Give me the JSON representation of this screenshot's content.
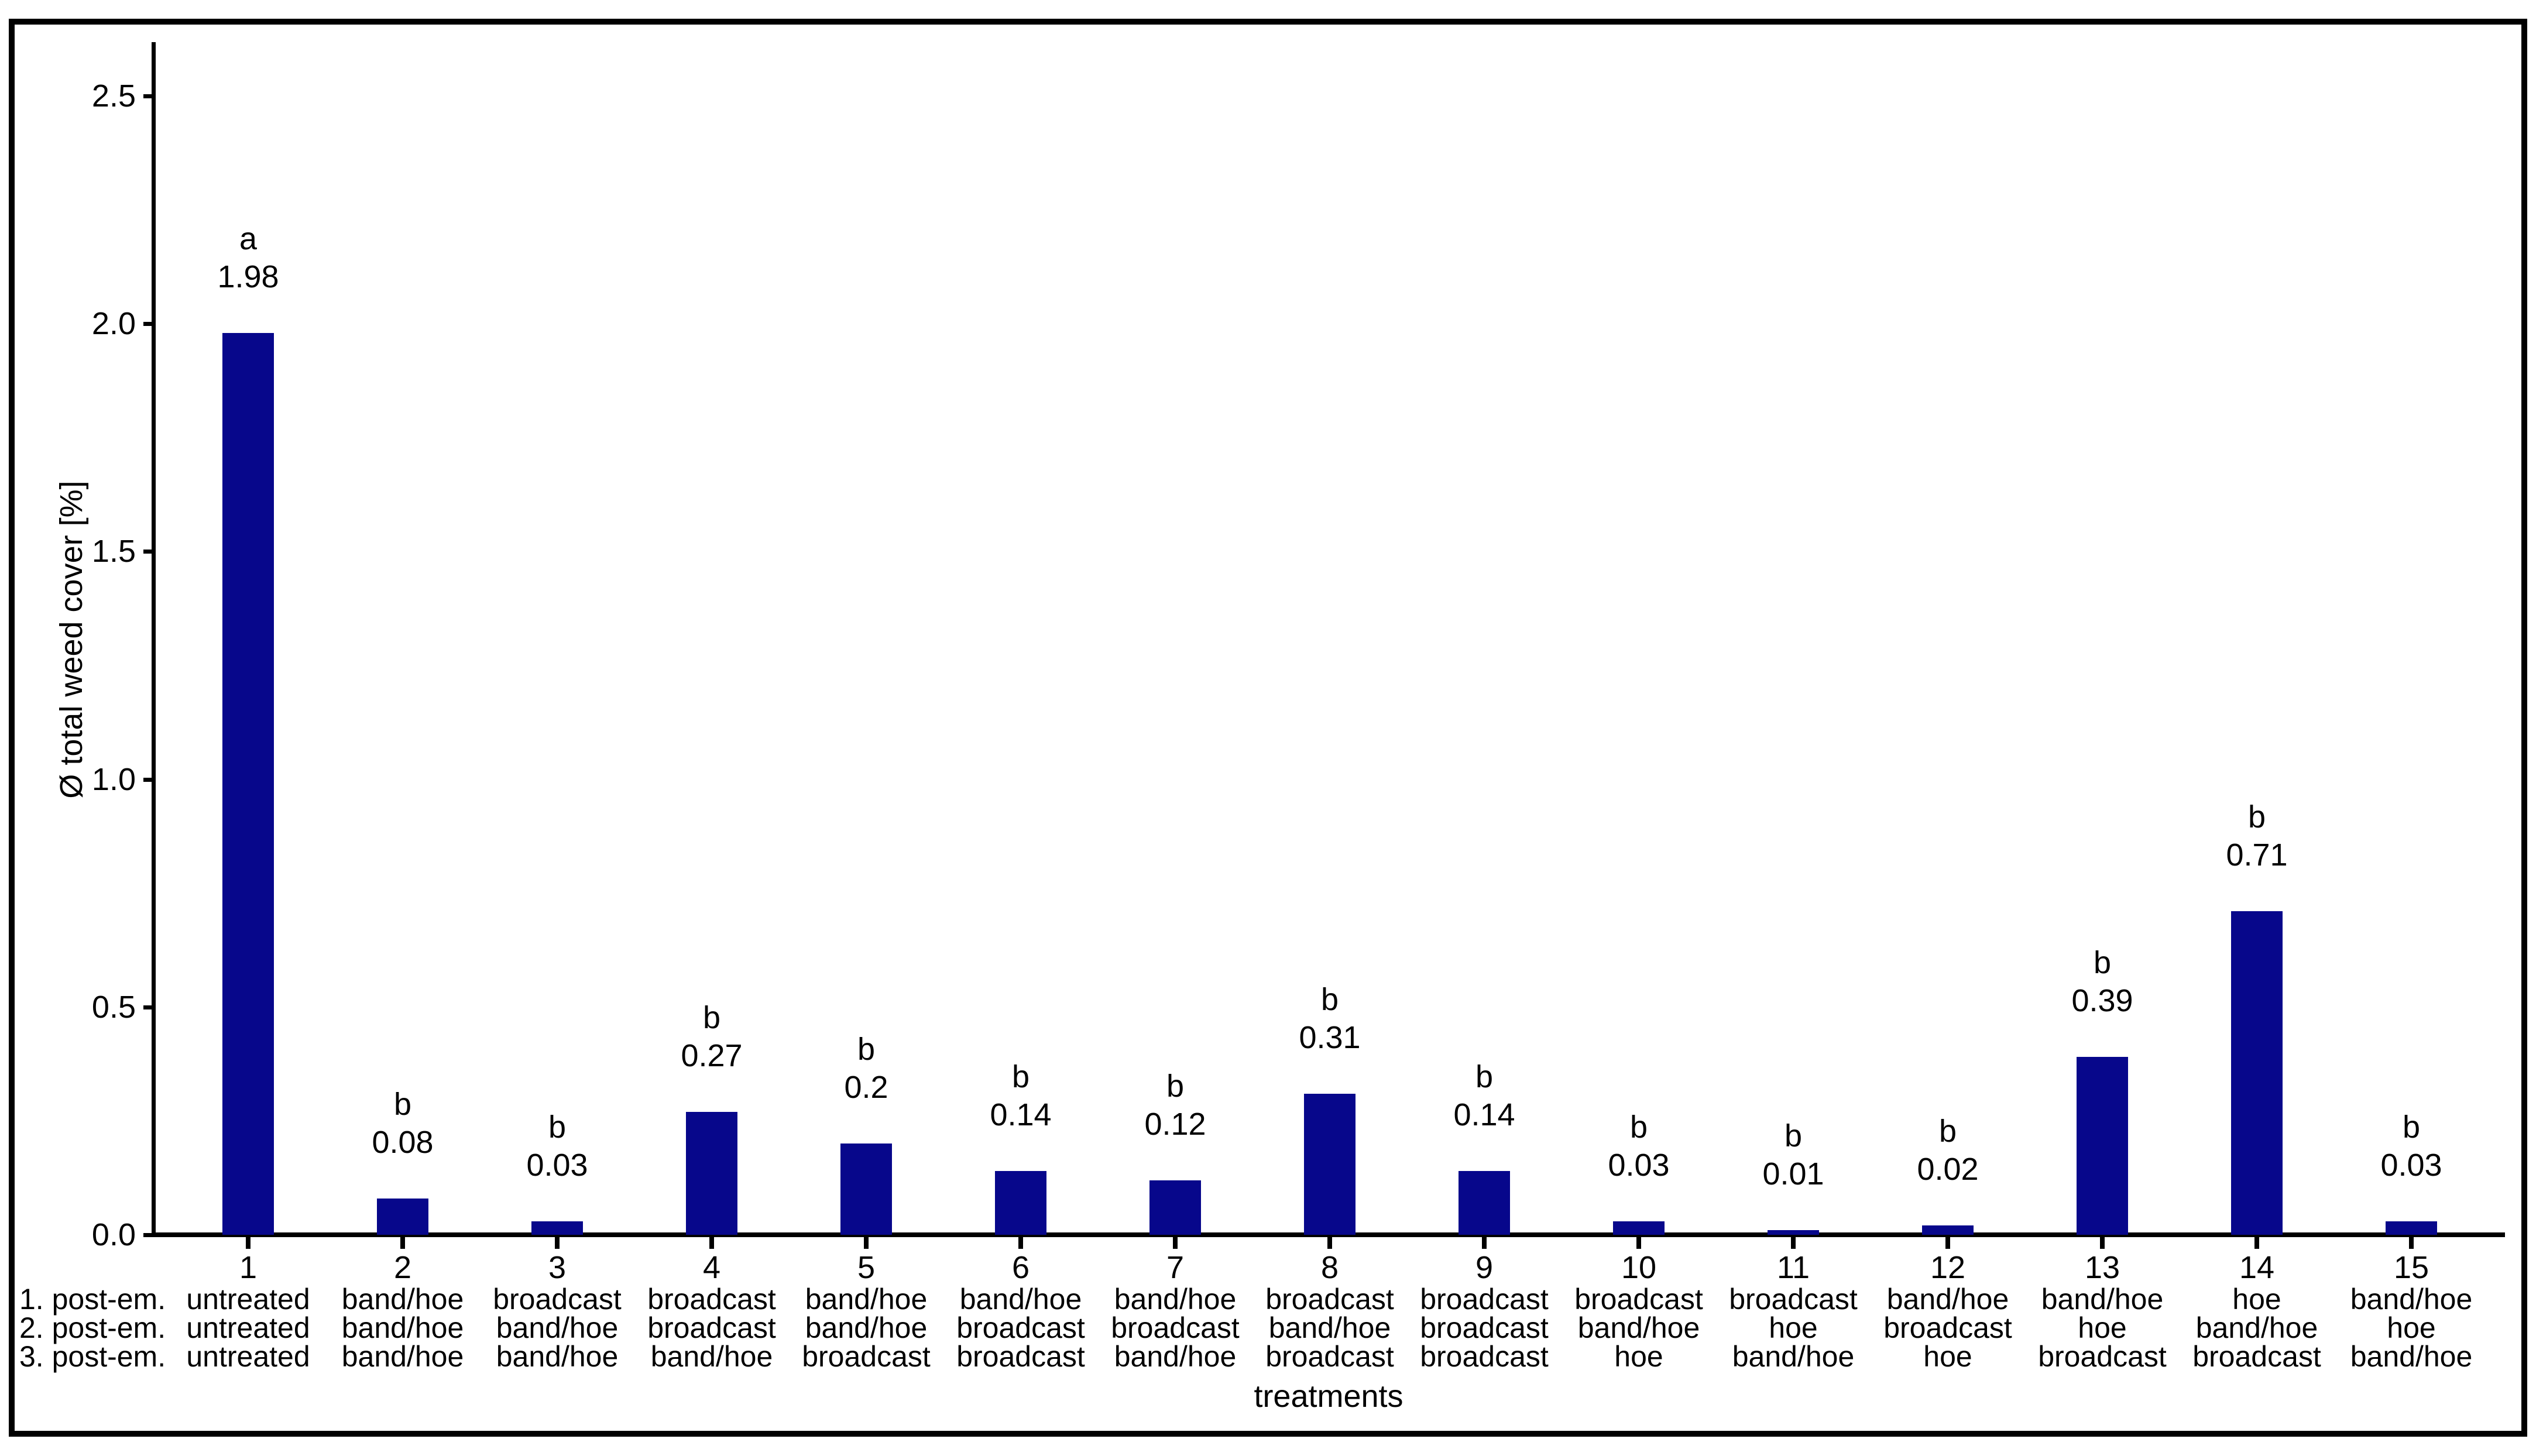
{
  "chart_data": {
    "type": "bar",
    "title": "",
    "ylabel": "Ø total weed cover [%]",
    "xlabel": "treatments",
    "ylim": [
      0,
      2.62
    ],
    "grid": false,
    "legend": "none",
    "bar_color": "#07078b",
    "axis_color": "#000000",
    "ytick_labels": [
      "0.0",
      "0.5",
      "1.0",
      "1.5",
      "2.0",
      "2.5"
    ],
    "row_headers": [
      "1. post-em.",
      "2. post-em.",
      "3. post-em."
    ],
    "categories": [
      "1",
      "2",
      "3",
      "4",
      "5",
      "6",
      "7",
      "8",
      "9",
      "10",
      "11",
      "12",
      "13",
      "14",
      "15"
    ],
    "bars": [
      {
        "num": "1",
        "letter": "a",
        "value": 1.98,
        "label": "1.98",
        "rows": [
          "untreated",
          "untreated",
          "untreated"
        ]
      },
      {
        "num": "2",
        "letter": "b",
        "value": 0.08,
        "label": "0.08",
        "rows": [
          "band/hoe",
          "band/hoe",
          "band/hoe"
        ]
      },
      {
        "num": "3",
        "letter": "b",
        "value": 0.03,
        "label": "0.03",
        "rows": [
          "broadcast",
          "band/hoe",
          "band/hoe"
        ]
      },
      {
        "num": "4",
        "letter": "b",
        "value": 0.27,
        "label": "0.27",
        "rows": [
          "broadcast",
          "broadcast",
          "band/hoe"
        ]
      },
      {
        "num": "5",
        "letter": "b",
        "value": 0.2,
        "label": "0.2",
        "rows": [
          "band/hoe",
          "band/hoe",
          "broadcast"
        ]
      },
      {
        "num": "6",
        "letter": "b",
        "value": 0.14,
        "label": "0.14",
        "rows": [
          "band/hoe",
          "broadcast",
          "broadcast"
        ]
      },
      {
        "num": "7",
        "letter": "b",
        "value": 0.12,
        "label": "0.12",
        "rows": [
          "band/hoe",
          "broadcast",
          "band/hoe"
        ]
      },
      {
        "num": "8",
        "letter": "b",
        "value": 0.31,
        "label": "0.31",
        "rows": [
          "broadcast",
          "band/hoe",
          "broadcast"
        ]
      },
      {
        "num": "9",
        "letter": "b",
        "value": 0.14,
        "label": "0.14",
        "rows": [
          "broadcast",
          "broadcast",
          "broadcast"
        ]
      },
      {
        "num": "10",
        "letter": "b",
        "value": 0.03,
        "label": "0.03",
        "rows": [
          "broadcast",
          "band/hoe",
          "hoe"
        ]
      },
      {
        "num": "11",
        "letter": "b",
        "value": 0.01,
        "label": "0.01",
        "rows": [
          "broadcast",
          "hoe",
          "band/hoe"
        ]
      },
      {
        "num": "12",
        "letter": "b",
        "value": 0.02,
        "label": "0.02",
        "rows": [
          "band/hoe",
          "broadcast",
          "hoe"
        ]
      },
      {
        "num": "13",
        "letter": "b",
        "value": 0.39,
        "label": "0.39",
        "rows": [
          "band/hoe",
          "hoe",
          "broadcast"
        ]
      },
      {
        "num": "14",
        "letter": "b",
        "value": 0.71,
        "label": "0.71",
        "rows": [
          "hoe",
          "band/hoe",
          "broadcast"
        ]
      },
      {
        "num": "15",
        "letter": "b",
        "value": 0.03,
        "label": "0.03",
        "rows": [
          "band/hoe",
          "hoe",
          "band/hoe"
        ]
      }
    ]
  }
}
